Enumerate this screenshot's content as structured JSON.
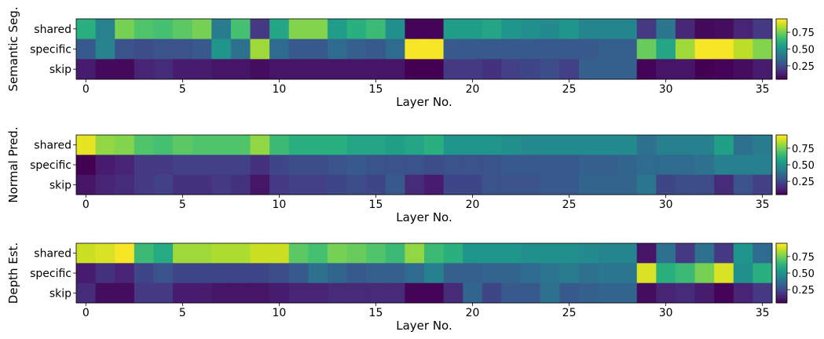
{
  "chart_data": [
    {
      "type": "heatmap",
      "ylabel": "Semantic Seg.",
      "xlabel": "Layer No.",
      "rows": [
        "shared",
        "specific",
        "skip"
      ],
      "x_ticks": [
        0,
        5,
        10,
        15,
        20,
        25,
        30,
        35
      ],
      "x_range": [
        0,
        35
      ],
      "colorbar_ticks": [
        "0.25",
        "0.50",
        "0.75"
      ],
      "colorbar_range": [
        0.05,
        0.95
      ],
      "colormap": "viridis",
      "values": [
        [
          0.62,
          0.45,
          0.76,
          0.7,
          0.68,
          0.72,
          0.76,
          0.42,
          0.68,
          0.2,
          0.58,
          0.78,
          0.78,
          0.55,
          0.62,
          0.66,
          0.5,
          0.06,
          0.06,
          0.55,
          0.55,
          0.58,
          0.52,
          0.5,
          0.48,
          0.52,
          0.46,
          0.46,
          0.46,
          0.2,
          0.4,
          0.15,
          0.07,
          0.08,
          0.14,
          0.2
        ],
        [
          0.3,
          0.45,
          0.28,
          0.26,
          0.28,
          0.28,
          0.3,
          0.52,
          0.38,
          0.82,
          0.36,
          0.3,
          0.3,
          0.36,
          0.32,
          0.3,
          0.36,
          0.94,
          0.94,
          0.3,
          0.3,
          0.3,
          0.3,
          0.3,
          0.3,
          0.3,
          0.3,
          0.32,
          0.32,
          0.74,
          0.58,
          0.82,
          0.94,
          0.94,
          0.86,
          0.78
        ],
        [
          0.12,
          0.07,
          0.07,
          0.14,
          0.16,
          0.12,
          0.12,
          0.1,
          0.1,
          0.08,
          0.1,
          0.1,
          0.1,
          0.1,
          0.1,
          0.1,
          0.1,
          0.04,
          0.04,
          0.2,
          0.2,
          0.18,
          0.22,
          0.24,
          0.26,
          0.22,
          0.32,
          0.32,
          0.32,
          0.06,
          0.1,
          0.1,
          0.05,
          0.06,
          0.08,
          0.12
        ]
      ]
    },
    {
      "type": "heatmap",
      "ylabel": "Normal Pred.",
      "xlabel": "Layer No.",
      "rows": [
        "shared",
        "specific",
        "skip"
      ],
      "x_ticks": [
        0,
        5,
        10,
        15,
        20,
        25,
        30,
        35
      ],
      "x_range": [
        0,
        35
      ],
      "colorbar_ticks": [
        "0.25",
        "0.50",
        "0.75"
      ],
      "colorbar_range": [
        0.05,
        0.95
      ],
      "colormap": "viridis",
      "values": [
        [
          0.92,
          0.8,
          0.78,
          0.7,
          0.68,
          0.72,
          0.7,
          0.7,
          0.7,
          0.8,
          0.66,
          0.62,
          0.62,
          0.62,
          0.58,
          0.58,
          0.56,
          0.58,
          0.62,
          0.52,
          0.52,
          0.52,
          0.5,
          0.48,
          0.48,
          0.48,
          0.48,
          0.48,
          0.48,
          0.38,
          0.44,
          0.44,
          0.44,
          0.56,
          0.38,
          0.42
        ],
        [
          0.05,
          0.12,
          0.14,
          0.2,
          0.2,
          0.22,
          0.22,
          0.22,
          0.22,
          0.18,
          0.24,
          0.26,
          0.26,
          0.28,
          0.3,
          0.28,
          0.28,
          0.28,
          0.26,
          0.28,
          0.28,
          0.28,
          0.3,
          0.3,
          0.3,
          0.3,
          0.32,
          0.32,
          0.34,
          0.36,
          0.36,
          0.36,
          0.38,
          0.44,
          0.44,
          0.44
        ],
        [
          0.1,
          0.14,
          0.16,
          0.2,
          0.22,
          0.18,
          0.18,
          0.2,
          0.18,
          0.1,
          0.2,
          0.22,
          0.22,
          0.24,
          0.26,
          0.24,
          0.3,
          0.16,
          0.12,
          0.24,
          0.24,
          0.28,
          0.28,
          0.28,
          0.3,
          0.3,
          0.34,
          0.34,
          0.34,
          0.4,
          0.24,
          0.26,
          0.26,
          0.16,
          0.28,
          0.22
        ]
      ]
    },
    {
      "type": "heatmap",
      "ylabel": "Depth Est.",
      "xlabel": "Layer No.",
      "rows": [
        "shared",
        "specific",
        "skip"
      ],
      "x_ticks": [
        0,
        5,
        10,
        15,
        20,
        25,
        30,
        35
      ],
      "x_range": [
        0,
        35
      ],
      "colorbar_ticks": [
        "0.25",
        "0.50",
        "0.75"
      ],
      "colorbar_range": [
        0.05,
        0.95
      ],
      "colormap": "viridis",
      "values": [
        [
          0.88,
          0.9,
          0.94,
          0.66,
          0.6,
          0.82,
          0.82,
          0.84,
          0.84,
          0.88,
          0.88,
          0.72,
          0.68,
          0.76,
          0.74,
          0.7,
          0.66,
          0.8,
          0.66,
          0.62,
          0.52,
          0.52,
          0.52,
          0.5,
          0.5,
          0.5,
          0.48,
          0.46,
          0.46,
          0.1,
          0.38,
          0.2,
          0.38,
          0.2,
          0.52,
          0.36
        ],
        [
          0.12,
          0.18,
          0.14,
          0.24,
          0.28,
          0.24,
          0.24,
          0.24,
          0.24,
          0.24,
          0.26,
          0.3,
          0.38,
          0.34,
          0.3,
          0.32,
          0.32,
          0.36,
          0.44,
          0.32,
          0.32,
          0.34,
          0.34,
          0.36,
          0.4,
          0.42,
          0.38,
          0.4,
          0.4,
          0.9,
          0.62,
          0.66,
          0.76,
          0.9,
          0.5,
          0.62
        ],
        [
          0.16,
          0.08,
          0.08,
          0.2,
          0.2,
          0.12,
          0.12,
          0.1,
          0.1,
          0.1,
          0.12,
          0.14,
          0.14,
          0.16,
          0.16,
          0.16,
          0.16,
          0.06,
          0.06,
          0.16,
          0.34,
          0.24,
          0.3,
          0.3,
          0.38,
          0.3,
          0.32,
          0.34,
          0.34,
          0.08,
          0.14,
          0.16,
          0.12,
          0.06,
          0.14,
          0.2
        ]
      ]
    }
  ]
}
